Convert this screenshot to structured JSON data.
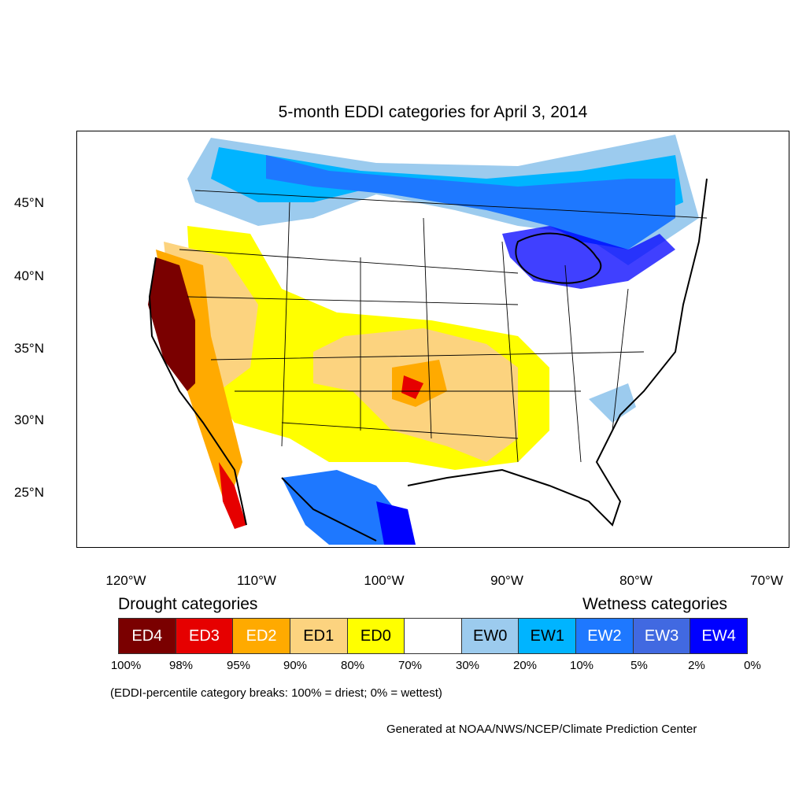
{
  "title": "5-month EDDI categories for April 3, 2014",
  "map": {
    "latitude_labels": [
      "45°N",
      "40°N",
      "35°N",
      "30°N",
      "25°N"
    ],
    "longitude_labels": [
      "120°W",
      "110°W",
      "100°W",
      "90°W",
      "80°W",
      "70°W"
    ]
  },
  "legend": {
    "drought_heading": "Drought categories",
    "wetness_heading": "Wetness categories",
    "categories": [
      {
        "label": "ED4",
        "color": "#7a0000",
        "text_color": "#ffffff"
      },
      {
        "label": "ED3",
        "color": "#e60000",
        "text_color": "#ffffff"
      },
      {
        "label": "ED2",
        "color": "#ffaa00",
        "text_color": "#ffffff"
      },
      {
        "label": "ED1",
        "color": "#fcd37f",
        "text_color": "#000000"
      },
      {
        "label": "ED0",
        "color": "#ffff00",
        "text_color": "#000000"
      },
      {
        "label": "",
        "color": "#ffffff",
        "text_color": "#000000"
      },
      {
        "label": "EW0",
        "color": "#9ccbee",
        "text_color": "#000000"
      },
      {
        "label": "EW1",
        "color": "#00b4ff",
        "text_color": "#000000"
      },
      {
        "label": "EW2",
        "color": "#1e78ff",
        "text_color": "#ffffff"
      },
      {
        "label": "EW3",
        "color": "#4169e1",
        "text_color": "#ffffff"
      },
      {
        "label": "EW4",
        "color": "#0000ff",
        "text_color": "#ffffff"
      }
    ],
    "percentile_breaks": [
      "100%",
      "98%",
      "95%",
      "90%",
      "80%",
      "70%",
      "30%",
      "20%",
      "10%",
      "5%",
      "2%",
      "0%"
    ]
  },
  "note": "(EDDI-percentile category breaks: 100% = driest; 0% = wettest)",
  "credit": "Generated at NOAA/NWS/NCEP/Climate Prediction Center"
}
